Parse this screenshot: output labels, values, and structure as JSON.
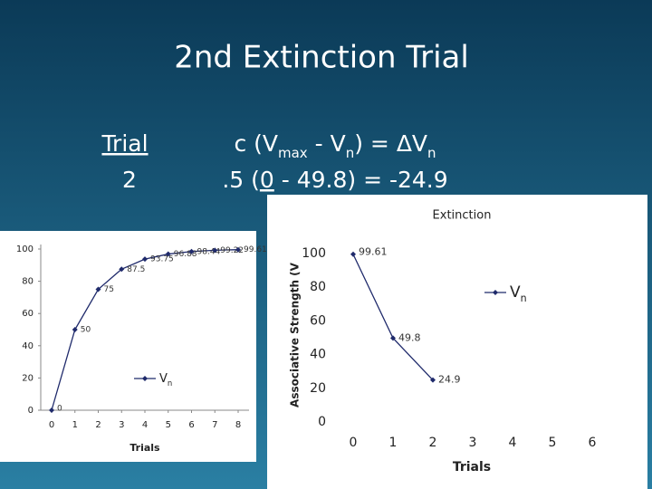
{
  "slide": {
    "title": "2nd Extinction Trial",
    "trial_label": "Trial",
    "trial_number": "2",
    "formula": [
      "c (V",
      "max",
      " - V",
      "n",
      ") = ΔV",
      "n"
    ],
    "calculation": [
      ".5 (",
      "0",
      " -  49.8) = -24.9"
    ]
  },
  "chart_data": [
    {
      "type": "line",
      "xlabel": "Trials",
      "x": [
        0,
        1,
        2,
        3,
        4,
        5,
        6,
        7,
        8
      ],
      "series": [
        {
          "name": "Vn",
          "color": "#1f2a6b",
          "values": [
            0,
            50,
            75,
            87.5,
            93.75,
            96.88,
            98.44,
            99.22,
            99.61
          ]
        }
      ],
      "xlim": [
        0,
        8
      ],
      "ylim": [
        0,
        100
      ],
      "xticks": [
        0,
        1,
        2,
        3,
        4,
        5,
        6,
        7,
        8
      ],
      "yticks": [
        0,
        20,
        40,
        60,
        80,
        100
      ],
      "legend": "lower center",
      "data_labels": true
    },
    {
      "type": "line",
      "title": "Extinction",
      "xlabel": "Trials",
      "ylabel": "Associative Strength (V",
      "x": [
        0,
        1,
        2
      ],
      "series": [
        {
          "name": "Vn",
          "color": "#1f2a6b",
          "values": [
            99.61,
            49.8,
            24.9
          ]
        }
      ],
      "xlim": [
        0,
        6
      ],
      "ylim": [
        0,
        100
      ],
      "xticks": [
        0,
        1,
        2,
        3,
        4,
        5,
        6
      ],
      "yticks": [
        0,
        20,
        40,
        60,
        80,
        100
      ],
      "legend": "right",
      "data_labels": true
    }
  ]
}
